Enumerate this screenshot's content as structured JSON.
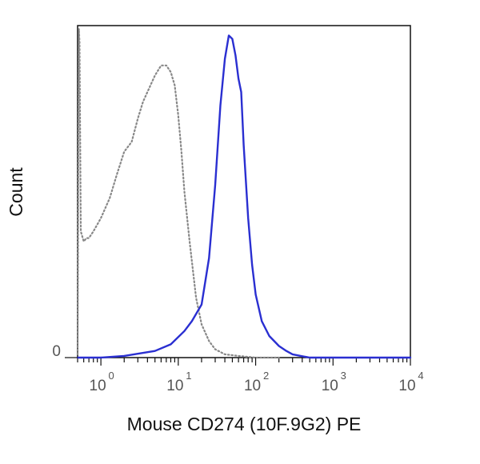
{
  "chart_data": {
    "type": "line",
    "xlabel": "Mouse CD274 (10F.9G2) PE",
    "ylabel": "Count",
    "x_scale": "log",
    "xlim": [
      0.5,
      10000
    ],
    "ylim": [
      0,
      1.0
    ],
    "x_ticks": [
      {
        "value": 1,
        "base": "10",
        "exp": "0"
      },
      {
        "value": 10,
        "base": "10",
        "exp": "1"
      },
      {
        "value": 100,
        "base": "10",
        "exp": "2"
      },
      {
        "value": 1000,
        "base": "10",
        "exp": "3"
      },
      {
        "value": 10000,
        "base": "10",
        "exp": "4"
      }
    ],
    "y_ticks": [
      {
        "value": 0,
        "label": "0"
      }
    ],
    "grid": false,
    "series": [
      {
        "color": "#888888",
        "style": "dotted",
        "x": [
          0.5,
          0.52,
          0.53,
          0.55,
          0.6,
          0.65,
          0.7,
          0.8,
          1.0,
          1.3,
          1.6,
          2.0,
          2.5,
          3.0,
          3.5,
          4.0,
          5.0,
          6.0,
          7.0,
          8.0,
          9.0,
          10,
          11,
          12,
          14,
          17,
          20,
          25,
          30,
          40,
          60,
          100,
          200
        ],
        "y": [
          0.01,
          0.99,
          0.95,
          0.38,
          0.35,
          0.36,
          0.36,
          0.38,
          0.42,
          0.48,
          0.55,
          0.62,
          0.65,
          0.72,
          0.77,
          0.8,
          0.85,
          0.88,
          0.88,
          0.86,
          0.82,
          0.73,
          0.62,
          0.5,
          0.35,
          0.18,
          0.1,
          0.05,
          0.025,
          0.01,
          0.005,
          0.0,
          0.0
        ]
      },
      {
        "color": "#2a2fd1",
        "style": "solid",
        "x": [
          0.5,
          1,
          2,
          5,
          8,
          12,
          15,
          20,
          25,
          30,
          35,
          40,
          45,
          50,
          55,
          60,
          65,
          70,
          80,
          90,
          100,
          120,
          150,
          200,
          250,
          300,
          400,
          500,
          1000,
          10000
        ],
        "y": [
          0.0,
          0.0,
          0.005,
          0.02,
          0.04,
          0.08,
          0.11,
          0.16,
          0.3,
          0.52,
          0.76,
          0.9,
          0.97,
          0.96,
          0.91,
          0.84,
          0.8,
          0.64,
          0.42,
          0.28,
          0.19,
          0.11,
          0.065,
          0.035,
          0.02,
          0.01,
          0.004,
          0.0,
          0.0,
          0.0
        ]
      }
    ]
  }
}
